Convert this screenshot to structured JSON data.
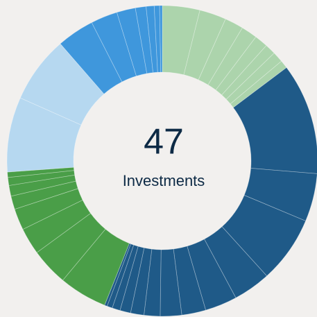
{
  "chart_data": {
    "type": "donut",
    "total": 47,
    "total_label": "Investments",
    "values": [
      14,
      10,
      7,
      6,
      5,
      4,
      4,
      3,
      41.6,
      18,
      25,
      14,
      12,
      9,
      8,
      6,
      5,
      4,
      3,
      2,
      1,
      18,
      14,
      10,
      8,
      5,
      4,
      3,
      2,
      28,
      25,
      14,
      10,
      7,
      4,
      3,
      2,
      1
    ],
    "colors": [
      "#acd4ac",
      "#acd4ac",
      "#acd4ac",
      "#acd4ac",
      "#acd4ac",
      "#acd4ac",
      "#acd4ac",
      "#acd4ac",
      "#1f5a88",
      "#1f5a88",
      "#1f5a88",
      "#1f5a88",
      "#1f5a88",
      "#1f5a88",
      "#1f5a88",
      "#1f5a88",
      "#1f5a88",
      "#1f5a88",
      "#1f5a88",
      "#1f5a88",
      "#1f5a88",
      "#4a9e48",
      "#4a9e48",
      "#4a9e48",
      "#4a9e48",
      "#4a9e48",
      "#4a9e48",
      "#4a9e48",
      "#4a9e48",
      "#b6d8f0",
      "#b6d8f0",
      "#3f97dc",
      "#3f97dc",
      "#3f97dc",
      "#3f97dc",
      "#3f97dc",
      "#3f97dc",
      "#3f97dc"
    ]
  }
}
